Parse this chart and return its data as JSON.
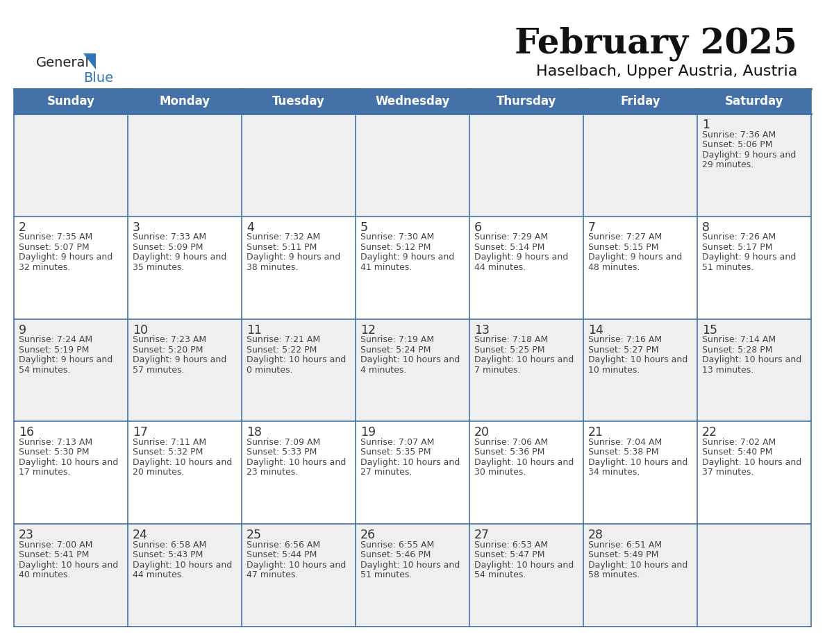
{
  "title": "February 2025",
  "subtitle": "Haselbach, Upper Austria, Austria",
  "days_of_week": [
    "Sunday",
    "Monday",
    "Tuesday",
    "Wednesday",
    "Thursday",
    "Friday",
    "Saturday"
  ],
  "header_bg": "#4472a8",
  "header_text": "#ffffff",
  "row_bg_even": "#efefef",
  "row_bg_odd": "#ffffff",
  "cell_border": "#4472a8",
  "text_color": "#444444",
  "day_num_color": "#333333",
  "calendar_data": [
    {
      "day": 1,
      "col": 6,
      "row": 0,
      "sunrise": "7:36 AM",
      "sunset": "5:06 PM",
      "daylight": "9 hours and 29 minutes"
    },
    {
      "day": 2,
      "col": 0,
      "row": 1,
      "sunrise": "7:35 AM",
      "sunset": "5:07 PM",
      "daylight": "9 hours and 32 minutes"
    },
    {
      "day": 3,
      "col": 1,
      "row": 1,
      "sunrise": "7:33 AM",
      "sunset": "5:09 PM",
      "daylight": "9 hours and 35 minutes"
    },
    {
      "day": 4,
      "col": 2,
      "row": 1,
      "sunrise": "7:32 AM",
      "sunset": "5:11 PM",
      "daylight": "9 hours and 38 minutes"
    },
    {
      "day": 5,
      "col": 3,
      "row": 1,
      "sunrise": "7:30 AM",
      "sunset": "5:12 PM",
      "daylight": "9 hours and 41 minutes"
    },
    {
      "day": 6,
      "col": 4,
      "row": 1,
      "sunrise": "7:29 AM",
      "sunset": "5:14 PM",
      "daylight": "9 hours and 44 minutes"
    },
    {
      "day": 7,
      "col": 5,
      "row": 1,
      "sunrise": "7:27 AM",
      "sunset": "5:15 PM",
      "daylight": "9 hours and 48 minutes"
    },
    {
      "day": 8,
      "col": 6,
      "row": 1,
      "sunrise": "7:26 AM",
      "sunset": "5:17 PM",
      "daylight": "9 hours and 51 minutes"
    },
    {
      "day": 9,
      "col": 0,
      "row": 2,
      "sunrise": "7:24 AM",
      "sunset": "5:19 PM",
      "daylight": "9 hours and 54 minutes"
    },
    {
      "day": 10,
      "col": 1,
      "row": 2,
      "sunrise": "7:23 AM",
      "sunset": "5:20 PM",
      "daylight": "9 hours and 57 minutes"
    },
    {
      "day": 11,
      "col": 2,
      "row": 2,
      "sunrise": "7:21 AM",
      "sunset": "5:22 PM",
      "daylight": "10 hours and 0 minutes"
    },
    {
      "day": 12,
      "col": 3,
      "row": 2,
      "sunrise": "7:19 AM",
      "sunset": "5:24 PM",
      "daylight": "10 hours and 4 minutes"
    },
    {
      "day": 13,
      "col": 4,
      "row": 2,
      "sunrise": "7:18 AM",
      "sunset": "5:25 PM",
      "daylight": "10 hours and 7 minutes"
    },
    {
      "day": 14,
      "col": 5,
      "row": 2,
      "sunrise": "7:16 AM",
      "sunset": "5:27 PM",
      "daylight": "10 hours and 10 minutes"
    },
    {
      "day": 15,
      "col": 6,
      "row": 2,
      "sunrise": "7:14 AM",
      "sunset": "5:28 PM",
      "daylight": "10 hours and 13 minutes"
    },
    {
      "day": 16,
      "col": 0,
      "row": 3,
      "sunrise": "7:13 AM",
      "sunset": "5:30 PM",
      "daylight": "10 hours and 17 minutes"
    },
    {
      "day": 17,
      "col": 1,
      "row": 3,
      "sunrise": "7:11 AM",
      "sunset": "5:32 PM",
      "daylight": "10 hours and 20 minutes"
    },
    {
      "day": 18,
      "col": 2,
      "row": 3,
      "sunrise": "7:09 AM",
      "sunset": "5:33 PM",
      "daylight": "10 hours and 23 minutes"
    },
    {
      "day": 19,
      "col": 3,
      "row": 3,
      "sunrise": "7:07 AM",
      "sunset": "5:35 PM",
      "daylight": "10 hours and 27 minutes"
    },
    {
      "day": 20,
      "col": 4,
      "row": 3,
      "sunrise": "7:06 AM",
      "sunset": "5:36 PM",
      "daylight": "10 hours and 30 minutes"
    },
    {
      "day": 21,
      "col": 5,
      "row": 3,
      "sunrise": "7:04 AM",
      "sunset": "5:38 PM",
      "daylight": "10 hours and 34 minutes"
    },
    {
      "day": 22,
      "col": 6,
      "row": 3,
      "sunrise": "7:02 AM",
      "sunset": "5:40 PM",
      "daylight": "10 hours and 37 minutes"
    },
    {
      "day": 23,
      "col": 0,
      "row": 4,
      "sunrise": "7:00 AM",
      "sunset": "5:41 PM",
      "daylight": "10 hours and 40 minutes"
    },
    {
      "day": 24,
      "col": 1,
      "row": 4,
      "sunrise": "6:58 AM",
      "sunset": "5:43 PM",
      "daylight": "10 hours and 44 minutes"
    },
    {
      "day": 25,
      "col": 2,
      "row": 4,
      "sunrise": "6:56 AM",
      "sunset": "5:44 PM",
      "daylight": "10 hours and 47 minutes"
    },
    {
      "day": 26,
      "col": 3,
      "row": 4,
      "sunrise": "6:55 AM",
      "sunset": "5:46 PM",
      "daylight": "10 hours and 51 minutes"
    },
    {
      "day": 27,
      "col": 4,
      "row": 4,
      "sunrise": "6:53 AM",
      "sunset": "5:47 PM",
      "daylight": "10 hours and 54 minutes"
    },
    {
      "day": 28,
      "col": 5,
      "row": 4,
      "sunrise": "6:51 AM",
      "sunset": "5:49 PM",
      "daylight": "10 hours and 58 minutes"
    }
  ]
}
